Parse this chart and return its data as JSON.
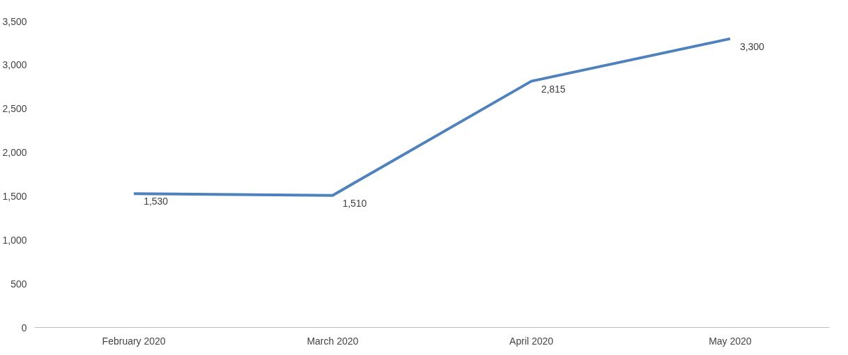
{
  "chart_data": {
    "type": "line",
    "categories": [
      "February 2020",
      "March 2020",
      "April 2020",
      "May 2020"
    ],
    "series": [
      {
        "color": "#4f81bd",
        "values": [
          1530,
          1510,
          2815,
          3300
        ],
        "value_labels": [
          "1,530",
          "1,510",
          "2,815",
          "3,300"
        ]
      }
    ],
    "ylim": [
      0,
      3500
    ],
    "yticks": [
      0,
      500,
      {
        "value": 1000,
        "label": "1,000"
      },
      {
        "value": 1500,
        "label": "1,500"
      },
      {
        "value": 2000,
        "label": "2,000"
      },
      {
        "value": 2500,
        "label": "2,500"
      },
      {
        "value": 3000,
        "label": "3,000"
      },
      {
        "value": 3500,
        "label": "3,500"
      }
    ],
    "grid": false,
    "marker": "none",
    "line_style": "solid"
  }
}
